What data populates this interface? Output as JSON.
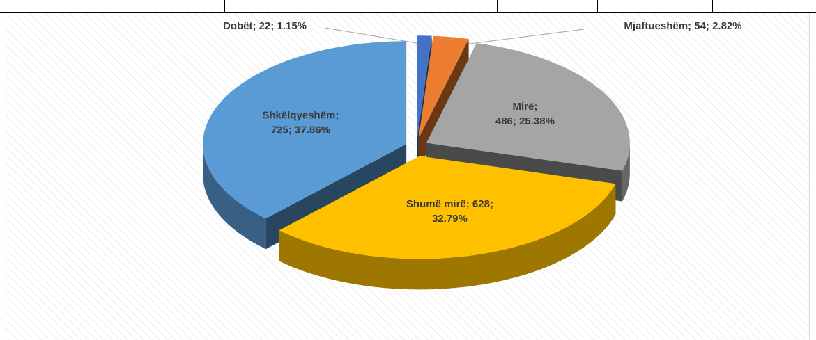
{
  "chart_data": {
    "type": "pie3d",
    "values": [
      22,
      54,
      486,
      628,
      725
    ],
    "value_labels": [
      [
        "Dobët; 22; 1.15%"
      ],
      [
        "Mjaftueshëm; 54; 2.82%"
      ],
      [
        "Mirë;",
        "486; 25.38%"
      ],
      [
        "Shumë mirë; 628;",
        "32.79%"
      ],
      [
        "Shkëlqyeshëm;",
        "725; 37.86%"
      ]
    ],
    "colors": [
      "#4472c4",
      "#ed7d31",
      "#a5a5a5",
      "#ffc000",
      "#5b9bd5"
    ]
  }
}
